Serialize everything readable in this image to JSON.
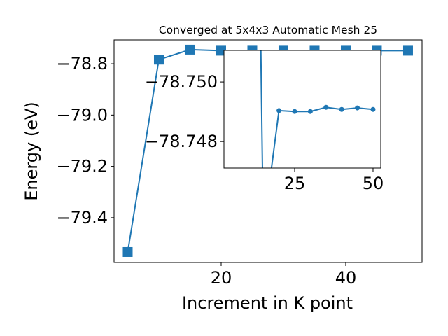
{
  "chart_data": {
    "type": "line",
    "title": "Converged at 5x4x3 Automatic Mesh 25",
    "x_label": "Increment in K point",
    "y_label": "Energy (eV)",
    "x": [
      5,
      10,
      15,
      20,
      25,
      30,
      35,
      40,
      45,
      50
    ],
    "series": [
      {
        "color": "#1f77b4",
        "values": [
          -79.534,
          -78.784,
          -78.745,
          -78.74904,
          -78.74901,
          -78.74901,
          -78.74915,
          -78.74908,
          -78.74913,
          -78.74908
        ]
      }
    ],
    "xlim": [
      2.81,
      52.25
    ],
    "ylim": [
      -79.575,
      -78.707
    ],
    "xticks": [
      20,
      40
    ],
    "yticks": [
      {
        "value": -79.4,
        "label": "−79.4"
      },
      {
        "value": -79.2,
        "label": "−79.2"
      },
      {
        "value": -79.0,
        "label": "−79.0"
      },
      {
        "value": -78.8,
        "label": "−78.8"
      }
    ],
    "inset": {
      "xlim": [
        2.46,
        52.46
      ],
      "ylim": [
        -78.74711,
        -78.75106
      ],
      "xticks": [
        25,
        50
      ],
      "yticks": [
        {
          "value": -78.748,
          "label": "−78.748"
        },
        {
          "value": -78.75,
          "label": "−78.750"
        }
      ]
    }
  }
}
